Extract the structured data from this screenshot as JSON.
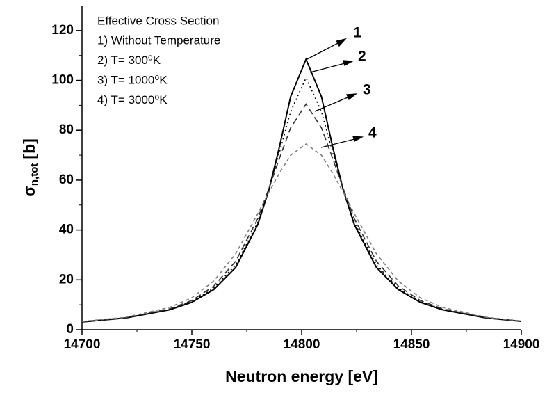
{
  "chart_data": {
    "type": "line",
    "legend_title": "Effective Cross Section",
    "xlabel": "Neutron energy [eV]",
    "ylabel": {
      "symbol": "σ",
      "subscript": "n,tot",
      "unit": "[b]"
    },
    "x": [
      14700,
      14720,
      14740,
      14750,
      14760,
      14770,
      14780,
      14785,
      14790,
      14795,
      14802,
      14809,
      14814,
      14819,
      14824,
      14834,
      14844,
      14854,
      14864,
      14884,
      14900
    ],
    "series": [
      {
        "name": "1) Without Temperature",
        "label": "1",
        "color": "#000000",
        "dash": "none",
        "values": [
          3.1,
          4.72,
          8.0,
          11.0,
          16.1,
          25.0,
          42.1,
          55.8,
          73.8,
          93.5,
          108.5,
          93.5,
          73.8,
          55.8,
          42.1,
          25.0,
          16.1,
          11.0,
          8.0,
          4.72,
          3.35
        ]
      },
      {
        "name": "2) T= 300⁰K",
        "label": "2",
        "color": "#000000",
        "dash": "2 4",
        "values": [
          3.1,
          4.75,
          8.2,
          11.3,
          16.7,
          26,
          43,
          56,
          71.5,
          87.5,
          101,
          87.5,
          71.5,
          56,
          43,
          26,
          16.7,
          11.3,
          8.2,
          4.75,
          3.35
        ]
      },
      {
        "name": "3) T= 1000⁰K",
        "label": "3",
        "color": "#333333",
        "dash": "9 5",
        "values": [
          3.2,
          4.8,
          8.4,
          11.7,
          17.5,
          27.5,
          44.5,
          56.5,
          69,
          81,
          90.5,
          81,
          69,
          56.5,
          44.5,
          27.5,
          17.5,
          11.7,
          8.4,
          4.8,
          3.4
        ]
      },
      {
        "name": "4) T= 3000⁰K",
        "label": "4",
        "color": "#808080",
        "dash": "5 4",
        "values": [
          3.3,
          5.0,
          9.0,
          12.8,
          19.5,
          30.5,
          46.5,
          55,
          63,
          70,
          74.5,
          70,
          63,
          55,
          46.5,
          30.5,
          19.5,
          12.8,
          9.0,
          5.0,
          3.5
        ]
      }
    ],
    "xlim": [
      14700,
      14900
    ],
    "xticks": [
      14700,
      14750,
      14800,
      14850,
      14900
    ],
    "ylim": [
      0,
      130
    ],
    "yticks": [
      0,
      20,
      40,
      60,
      80,
      100,
      120
    ]
  }
}
